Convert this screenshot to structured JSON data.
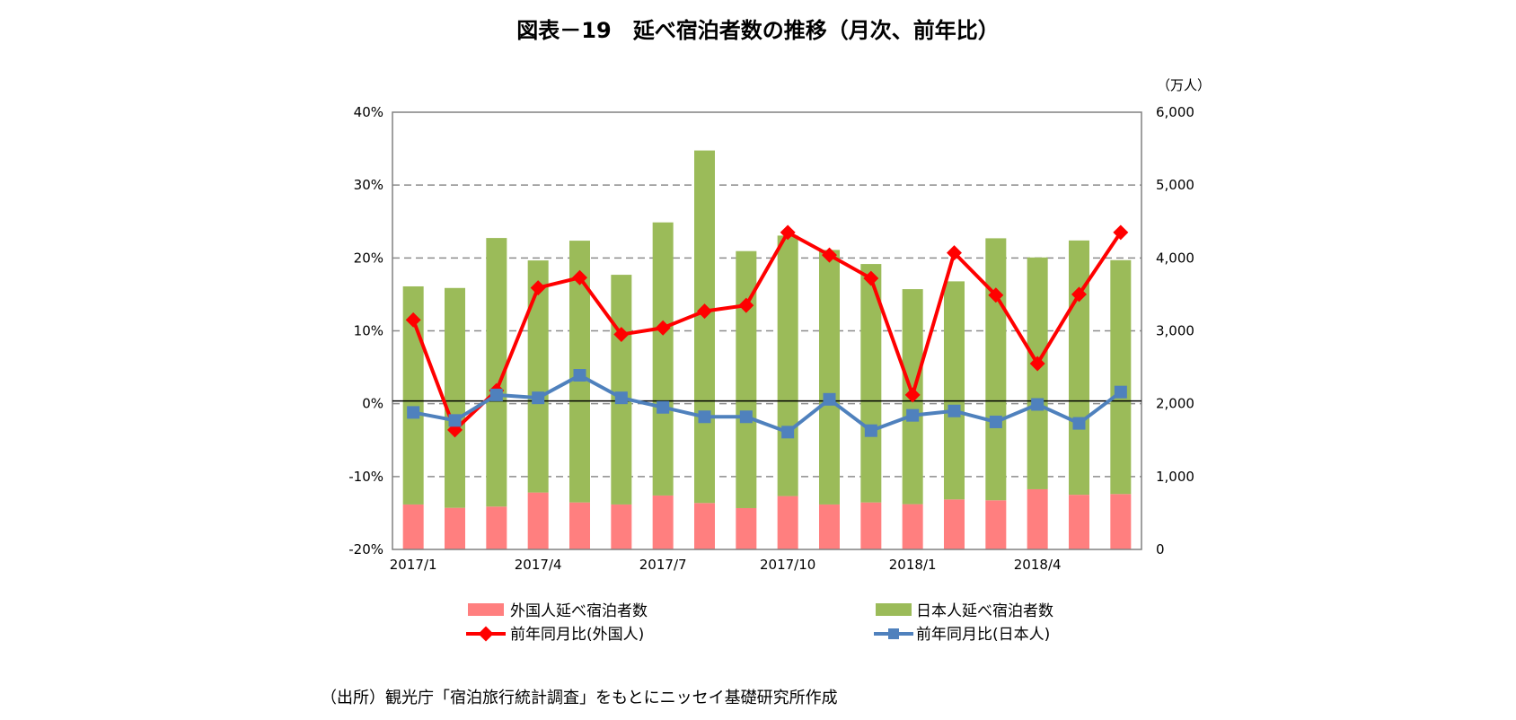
{
  "chart_data": {
    "type": "bar+line",
    "title": "図表－19　延べ宿泊者数の推移（月次、前年比）",
    "right_unit": "（万人）",
    "source": "（出所）観光庁「宿泊旅行統計調査」をもとにニッセイ基礎研究所作成",
    "categories": [
      "2017/1",
      "2017/2",
      "2017/3",
      "2017/4",
      "2017/5",
      "2017/6",
      "2017/7",
      "2017/8",
      "2017/9",
      "2017/10",
      "2017/11",
      "2017/12",
      "2018/1",
      "2018/2",
      "2018/3",
      "2018/4",
      "2018/5",
      "2018/6"
    ],
    "x_tick_labels": [
      "2017/1",
      "",
      "",
      "2017/4",
      "",
      "",
      "2017/7",
      "",
      "",
      "2017/10",
      "",
      "",
      "2018/1",
      "",
      "",
      "2018/4",
      "",
      ""
    ],
    "left_axis": {
      "ylim": [
        -20,
        40
      ],
      "ticks": [
        "-20%",
        "-10%",
        "0%",
        "10%",
        "20%",
        "30%",
        "40%"
      ]
    },
    "right_axis": {
      "ylim": [
        0,
        6000
      ],
      "ticks": [
        "0",
        "1,000",
        "2,000",
        "3,000",
        "4,000",
        "5,000",
        "6,000"
      ]
    },
    "grid": "horizontal dashed",
    "legend_position": "bottom",
    "bar_series": [
      {
        "name": "外国人延べ宿泊者数",
        "axis": "right",
        "color": "#ff7f7f",
        "values": [
          617,
          571,
          588,
          781,
          645,
          617,
          740,
          637,
          567,
          732,
          617,
          645,
          621,
          686,
          674,
          826,
          750,
          760
        ]
      },
      {
        "name": "日本人延べ宿泊者数",
        "axis": "right",
        "color": "#9bbb59",
        "values": [
          2993,
          3017,
          3686,
          3185,
          3592,
          3152,
          3748,
          4838,
          3527,
          3575,
          3493,
          3272,
          2951,
          2993,
          3596,
          3181,
          3490,
          3210
        ]
      }
    ],
    "line_series": [
      {
        "name": "前年同月比(外国人)",
        "axis": "left",
        "color": "#ff0000",
        "marker": "diamond",
        "values": [
          11.5,
          -3.6,
          1.8,
          15.9,
          17.3,
          9.5,
          10.4,
          12.7,
          13.5,
          23.5,
          20.4,
          17.2,
          1.2,
          20.7,
          14.9,
          5.5,
          15.0,
          23.5
        ]
      },
      {
        "name": "前年同月比(日本人)",
        "axis": "left",
        "color": "#4f81bd",
        "marker": "square",
        "values": [
          -1.2,
          -2.3,
          1.2,
          0.8,
          3.9,
          0.8,
          -0.5,
          -1.8,
          -1.8,
          -3.9,
          0.6,
          -3.7,
          -1.6,
          -1.0,
          -2.5,
          -0.1,
          -2.7,
          1.6
        ]
      }
    ]
  }
}
